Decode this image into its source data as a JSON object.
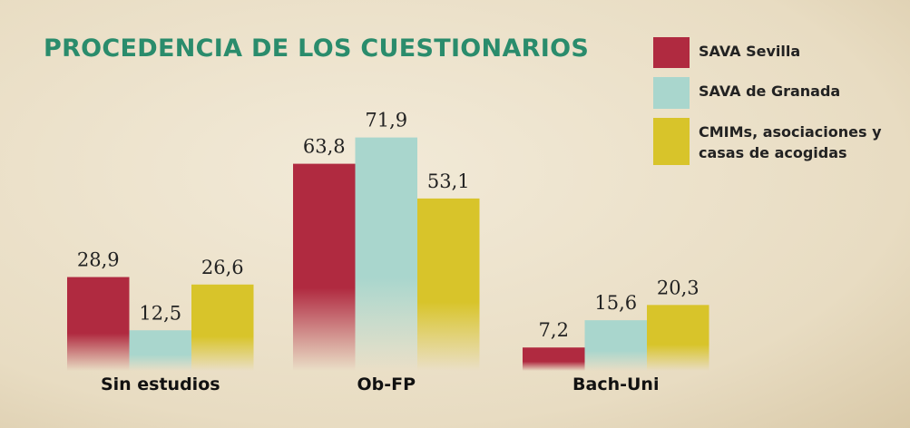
{
  "chart_data": {
    "type": "bar",
    "title": "PROCEDENCIA DE LOS CUESTIONARIOS",
    "categories": [
      "Sin estudios",
      "Ob-FP",
      "Bach-Uni"
    ],
    "series": [
      {
        "name": "SAVA Sevilla",
        "color": "#b02a40",
        "values": [
          28.9,
          63.8,
          7.2
        ],
        "value_labels": [
          "28,9",
          "63,8",
          "7,2"
        ]
      },
      {
        "name": "SAVA de Granada",
        "color": "#a9d6cd",
        "values": [
          12.5,
          71.9,
          15.6
        ],
        "value_labels": [
          "12,5",
          "71,9",
          "15,6"
        ]
      },
      {
        "name": "CMIMs, asociaciones y casas de acogidas",
        "color": "#d8c42a",
        "values": [
          26.6,
          53.1,
          20.3
        ],
        "value_labels": [
          "26,6",
          "53,1",
          "20,3"
        ]
      }
    ]
  }
}
